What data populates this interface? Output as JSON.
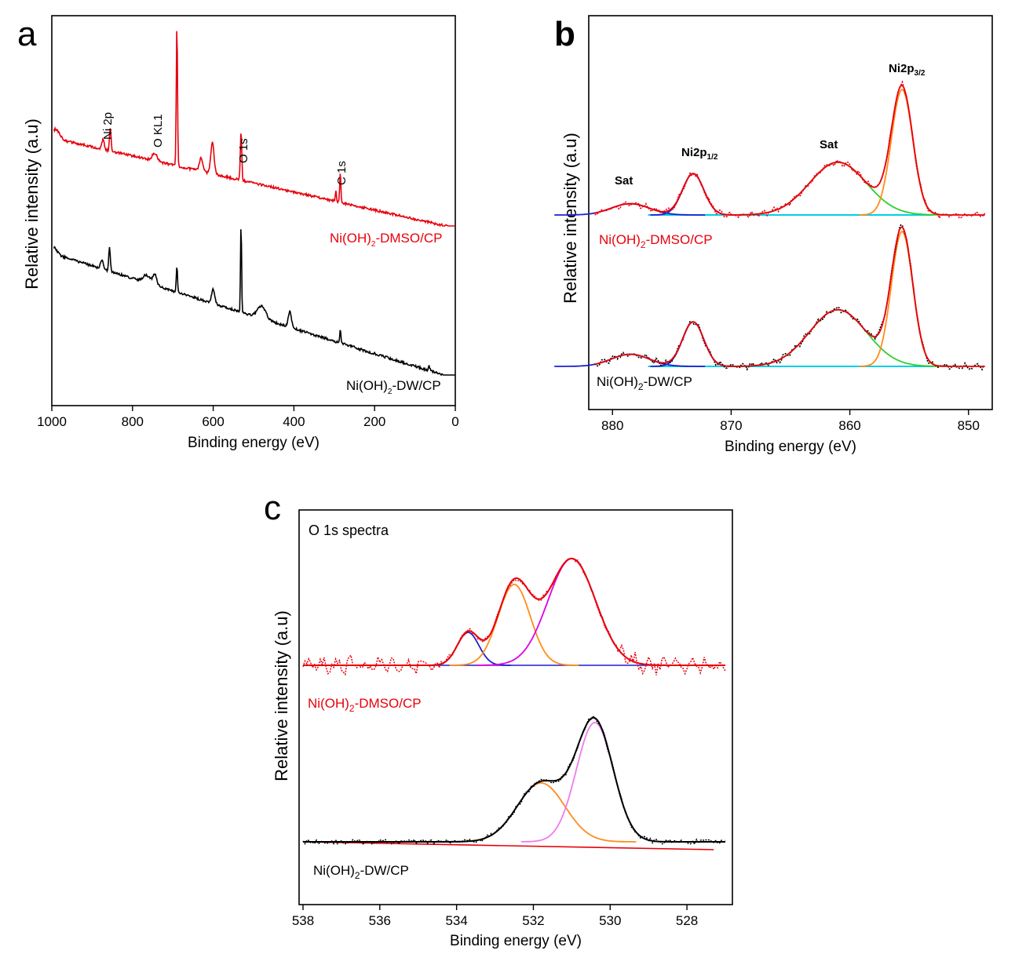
{
  "chart_data": [
    {
      "id": "a",
      "type": "line",
      "panel_label": "a",
      "xlabel": "Binding energy (eV)",
      "ylabel": "Relative intensity (a.u)",
      "xlim": [
        1000,
        0
      ],
      "xticks": [
        1000,
        800,
        600,
        400,
        200,
        0
      ],
      "yticks": false,
      "peak_labels": [
        "Ni 2p",
        "O KL1",
        "O 1s",
        "C 1s"
      ],
      "peak_positions": [
        855,
        745,
        531,
        285
      ],
      "series": [
        {
          "name": "Ni(OH)2-DMSO/CP",
          "color": "#e8000b"
        },
        {
          "name": "Ni(OH)2-DW/CP",
          "color": "#000000"
        }
      ]
    },
    {
      "id": "b",
      "type": "line",
      "panel_label": "b",
      "xlabel": "Binding energy (eV)",
      "ylabel": "Relative intensity (a.u)",
      "xlim": [
        882,
        848
      ],
      "xticks": [
        880,
        870,
        860,
        850
      ],
      "peak_labels": [
        "Sat",
        "Ni2p",
        "1/2",
        "Sat",
        "Ni2p",
        "3/2"
      ],
      "peak_positions": [
        878.5,
        873.2,
        861.0,
        855.6
      ],
      "series": [
        {
          "name": "Ni(OH)2-DMSO/CP",
          "color": "#e8000b"
        },
        {
          "name": "Ni(OH)2-DW/CP",
          "color": "#000000"
        }
      ],
      "fit_components": [
        "Sat 878.5 eV",
        "Ni2p1/2 873.2 eV",
        "Sat 861.0 eV",
        "Ni2p3/2 855.6 eV"
      ]
    },
    {
      "id": "c",
      "type": "line",
      "panel_label": "c",
      "title": "O 1s spectra",
      "xlabel": "Binding energy (eV)",
      "ylabel": "Relative intensity (a.u)",
      "xlim": [
        538,
        527
      ],
      "xticks": [
        538,
        536,
        534,
        532,
        530,
        528
      ],
      "series": [
        {
          "name": "Ni(OH)2-DMSO/CP",
          "color": "#e8000b",
          "fit_peaks_eV": [
            533.7,
            532.5,
            531.0
          ]
        },
        {
          "name": "Ni(OH)2-DW/CP",
          "color": "#000000",
          "fit_peaks_eV": [
            531.8,
            530.4
          ]
        }
      ]
    }
  ],
  "legend_text": {
    "dmso_prefix": "Ni(OH)",
    "dmso_suffix": "-DMSO/CP",
    "dw_prefix": "Ni(OH)",
    "dw_suffix": "-DW/CP",
    "subscript": "2"
  }
}
